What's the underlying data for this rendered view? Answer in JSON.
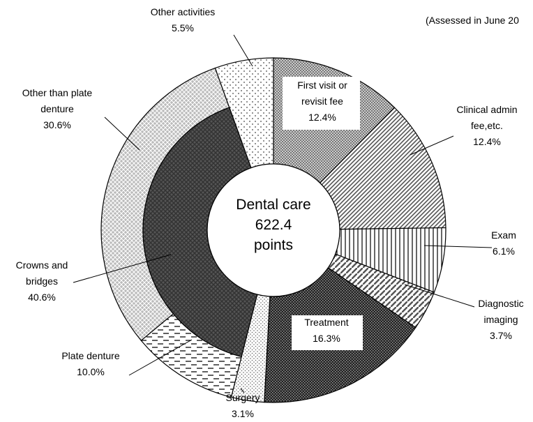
{
  "chart_data": {
    "type": "donut",
    "note": "(Assessed in June 20",
    "center_label": "Dental care\n622.4\npoints",
    "categories": [
      "First visit or\nrevisit fee",
      "Clinical admin\nfee,etc.",
      "Exam",
      "Diagnostic\nimaging",
      "Treatment",
      "Surgery",
      "Plate denture",
      "Other than plate\ndenture",
      "Other activities"
    ],
    "values": [
      12.4,
      12.4,
      6.1,
      3.7,
      16.3,
      3.1,
      10.0,
      30.6,
      5.5
    ],
    "value_labels": [
      "12.4%",
      "12.4%",
      "6.1%",
      "3.7%",
      "16.3%",
      "3.1%",
      "10.0%",
      "30.6%",
      "5.5%"
    ],
    "inner": {
      "categories": [
        "Crowns and\nbridges"
      ],
      "values": [
        40.6
      ],
      "value_labels": [
        "40.6%"
      ]
    }
  }
}
